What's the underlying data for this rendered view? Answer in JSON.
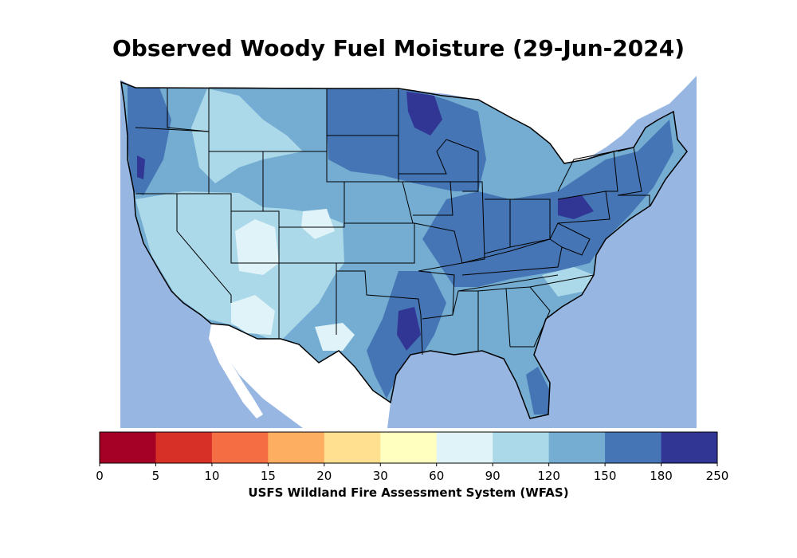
{
  "title": "Observed Woody Fuel Moisture (29-Jun-2024)",
  "colorbar": {
    "caption": "USFS Wildland Fire Assessment System (WFAS)",
    "ticks": [
      "0",
      "5",
      "10",
      "15",
      "20",
      "30",
      "60",
      "90",
      "120",
      "150",
      "180",
      "250"
    ],
    "colors": [
      "#a50026",
      "#d73027",
      "#f46d43",
      "#fdae61",
      "#fee090",
      "#ffffbf",
      "#e0f3f8",
      "#abd9e9",
      "#74add1",
      "#4575b4",
      "#313695"
    ]
  },
  "map_colors": {
    "water": "#97b6e2",
    "land_outside": "#ffffff",
    "borders": "#000000"
  }
}
